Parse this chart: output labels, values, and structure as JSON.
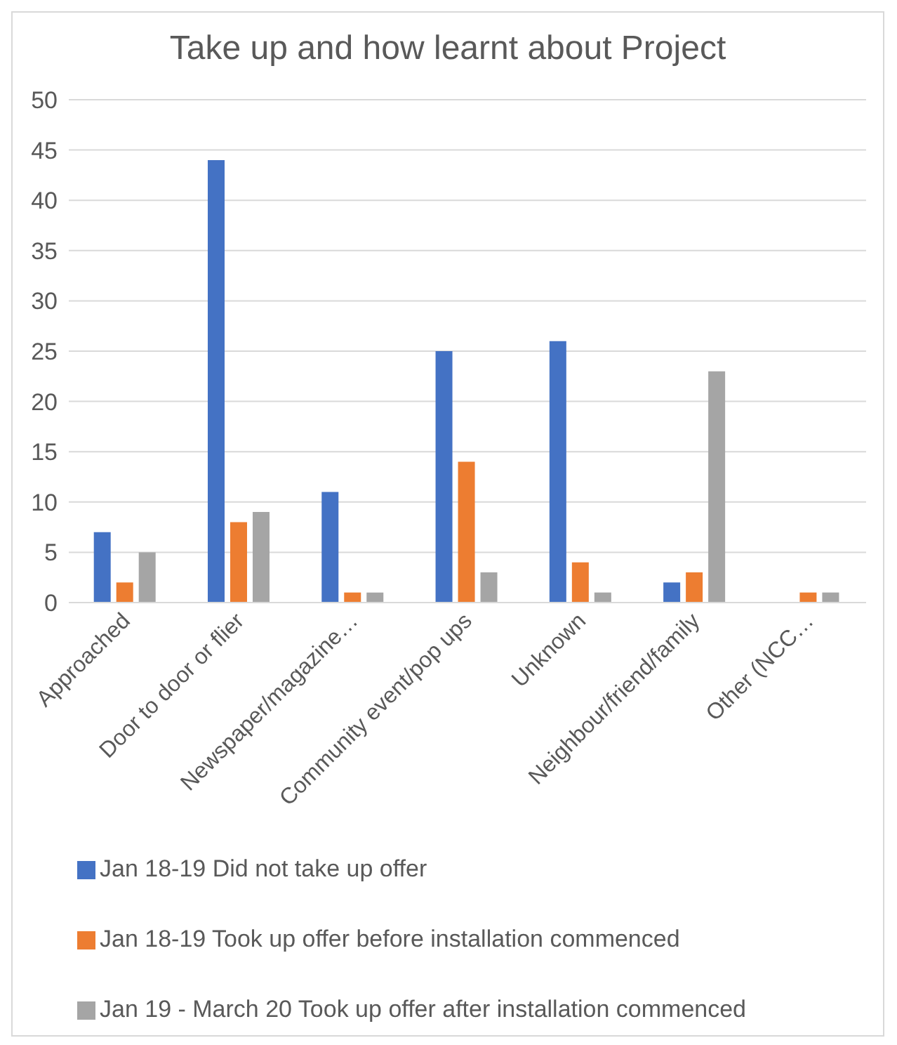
{
  "chart_data": {
    "type": "bar",
    "title": "Take up and how learnt about Project",
    "categories": [
      "Approached",
      "Door to door or flier",
      "Newspaper/magazine…",
      "Community event/pop ups",
      "Unknown",
      "Neighbour/friend/family",
      "Other (NCC…"
    ],
    "series": [
      {
        "name": "Jan 18-19 Did not take up offer",
        "color": "#4472c4",
        "values": [
          7,
          44,
          11,
          25,
          26,
          2,
          0
        ]
      },
      {
        "name": "Jan 18-19 Took up offer before installation commenced",
        "color": "#ed7d31",
        "values": [
          2,
          8,
          1,
          14,
          4,
          3,
          1
        ]
      },
      {
        "name": "Jan 19 - March 20 Took up offer after installation commenced",
        "color": "#a5a5a5",
        "values": [
          5,
          9,
          1,
          3,
          1,
          23,
          1
        ]
      }
    ],
    "ylim": [
      0,
      50
    ],
    "yticks": [
      0,
      5,
      10,
      15,
      20,
      25,
      30,
      35,
      40,
      45,
      50
    ],
    "grid": "y",
    "legend": "bottom"
  }
}
